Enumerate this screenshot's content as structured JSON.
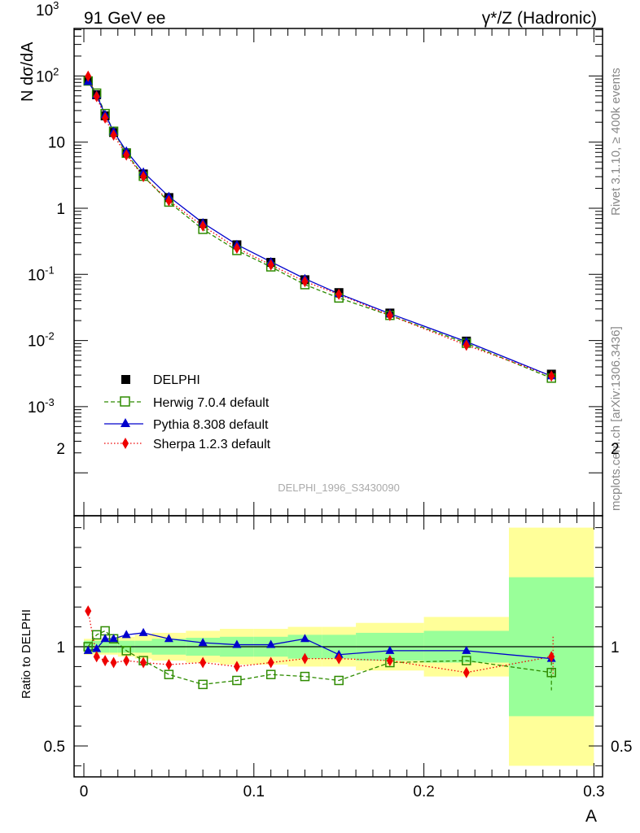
{
  "header": {
    "left_title": "91 GeV ee",
    "right_title": "γ*/Z (Hadronic)"
  },
  "side_labels": {
    "rivet": "Rivet 3.1.10, ≥ 400k events",
    "mcplots": "mcplots.cern.ch [arXiv:1306.3436]"
  },
  "watermark": "DELPHI_1996_S3430090",
  "colors": {
    "data": "#000000",
    "herwig": "#2e8b00",
    "pythia": "#0000cc",
    "sherpa": "#ee0000",
    "band_inner": "#99ff99",
    "band_outer": "#ffff99"
  },
  "chart_data": [
    {
      "type": "scatter",
      "ylabel": "N dσ/dA",
      "yscale": "log",
      "ylim": [
        0.0003,
        5000
      ],
      "xlim": [
        -0.007,
        0.3
      ],
      "ytick_labels": [
        "10^-3",
        "10^-2",
        "10^-1",
        "1",
        "10",
        "10^2",
        "10^3"
      ],
      "x": [
        0.0025,
        0.0075,
        0.0125,
        0.0175,
        0.025,
        0.035,
        0.05,
        0.07,
        0.09,
        0.11,
        0.13,
        0.15,
        0.18,
        0.225,
        0.275
      ],
      "series": [
        {
          "name": "DELPHI",
          "style": "square-filled",
          "values": [
            84,
            52,
            25,
            14,
            6.9,
            3.3,
            1.45,
            0.59,
            0.28,
            0.152,
            0.083,
            0.053,
            0.026,
            0.0098,
            0.0031
          ]
        },
        {
          "name": "Herwig 7.0.4 default",
          "style": "square-open-dashed",
          "values": [
            84,
            55,
            27,
            14.6,
            6.8,
            3.05,
            1.24,
            0.48,
            0.23,
            0.13,
            0.07,
            0.044,
            0.024,
            0.0091,
            0.0027
          ]
        },
        {
          "name": "Pythia 8.308 default",
          "style": "triangle-solid-line",
          "values": [
            82,
            51.5,
            26,
            14.5,
            7.3,
            3.52,
            1.5,
            0.6,
            0.282,
            0.155,
            0.086,
            0.051,
            0.0255,
            0.0096,
            0.0029
          ]
        },
        {
          "name": "Sherpa 1.2.3 default",
          "style": "diamond-dotted",
          "values": [
            99,
            49,
            23.2,
            12.8,
            6.4,
            3.02,
            1.3,
            0.54,
            0.25,
            0.139,
            0.078,
            0.05,
            0.024,
            0.0085,
            0.0029
          ]
        }
      ]
    },
    {
      "type": "line",
      "xlabel": "A",
      "ylabel": "Ratio to DELPHI",
      "ylim": [
        0.35,
        2.35
      ],
      "xlim": [
        -0.007,
        0.3
      ],
      "ytick_labels": [
        "0.5",
        "1",
        "2"
      ],
      "xtick_labels": [
        "0",
        "0.1",
        "0.2",
        "0.3"
      ],
      "x": [
        0.0025,
        0.0075,
        0.0125,
        0.0175,
        0.025,
        0.035,
        0.05,
        0.07,
        0.09,
        0.11,
        0.13,
        0.15,
        0.18,
        0.225,
        0.275
      ],
      "bins": [
        [
          0.0,
          0.005
        ],
        [
          0.005,
          0.01
        ],
        [
          0.01,
          0.015
        ],
        [
          0.015,
          0.02
        ],
        [
          0.02,
          0.03
        ],
        [
          0.03,
          0.04
        ],
        [
          0.04,
          0.06
        ],
        [
          0.06,
          0.08
        ],
        [
          0.08,
          0.1
        ],
        [
          0.1,
          0.12
        ],
        [
          0.12,
          0.14
        ],
        [
          0.14,
          0.16
        ],
        [
          0.16,
          0.2
        ],
        [
          0.2,
          0.25
        ],
        [
          0.25,
          0.3
        ]
      ],
      "band_inner_half_width": [
        0.03,
        0.03,
        0.03,
        0.03,
        0.03,
        0.03,
        0.04,
        0.045,
        0.05,
        0.05,
        0.06,
        0.06,
        0.07,
        0.08,
        0.35
      ],
      "band_outer_half_width": [
        0.04,
        0.04,
        0.04,
        0.04,
        0.05,
        0.06,
        0.07,
        0.08,
        0.09,
        0.09,
        0.1,
        0.1,
        0.12,
        0.15,
        0.6
      ],
      "series": [
        {
          "name": "Herwig 7.0.4 default",
          "values": [
            1.0,
            1.06,
            1.08,
            1.04,
            0.98,
            0.93,
            0.86,
            0.81,
            0.83,
            0.86,
            0.85,
            0.83,
            0.92,
            0.93,
            0.87
          ]
        },
        {
          "name": "Pythia 8.308 default",
          "values": [
            0.98,
            0.99,
            1.04,
            1.04,
            1.06,
            1.07,
            1.04,
            1.02,
            1.01,
            1.01,
            1.04,
            0.96,
            0.98,
            0.98,
            0.94
          ]
        },
        {
          "name": "Sherpa 1.2.3 default",
          "values": [
            1.18,
            0.95,
            0.93,
            0.92,
            0.93,
            0.92,
            0.91,
            0.92,
            0.9,
            0.92,
            0.94,
            0.94,
            0.93,
            0.87,
            0.95
          ]
        }
      ]
    }
  ]
}
